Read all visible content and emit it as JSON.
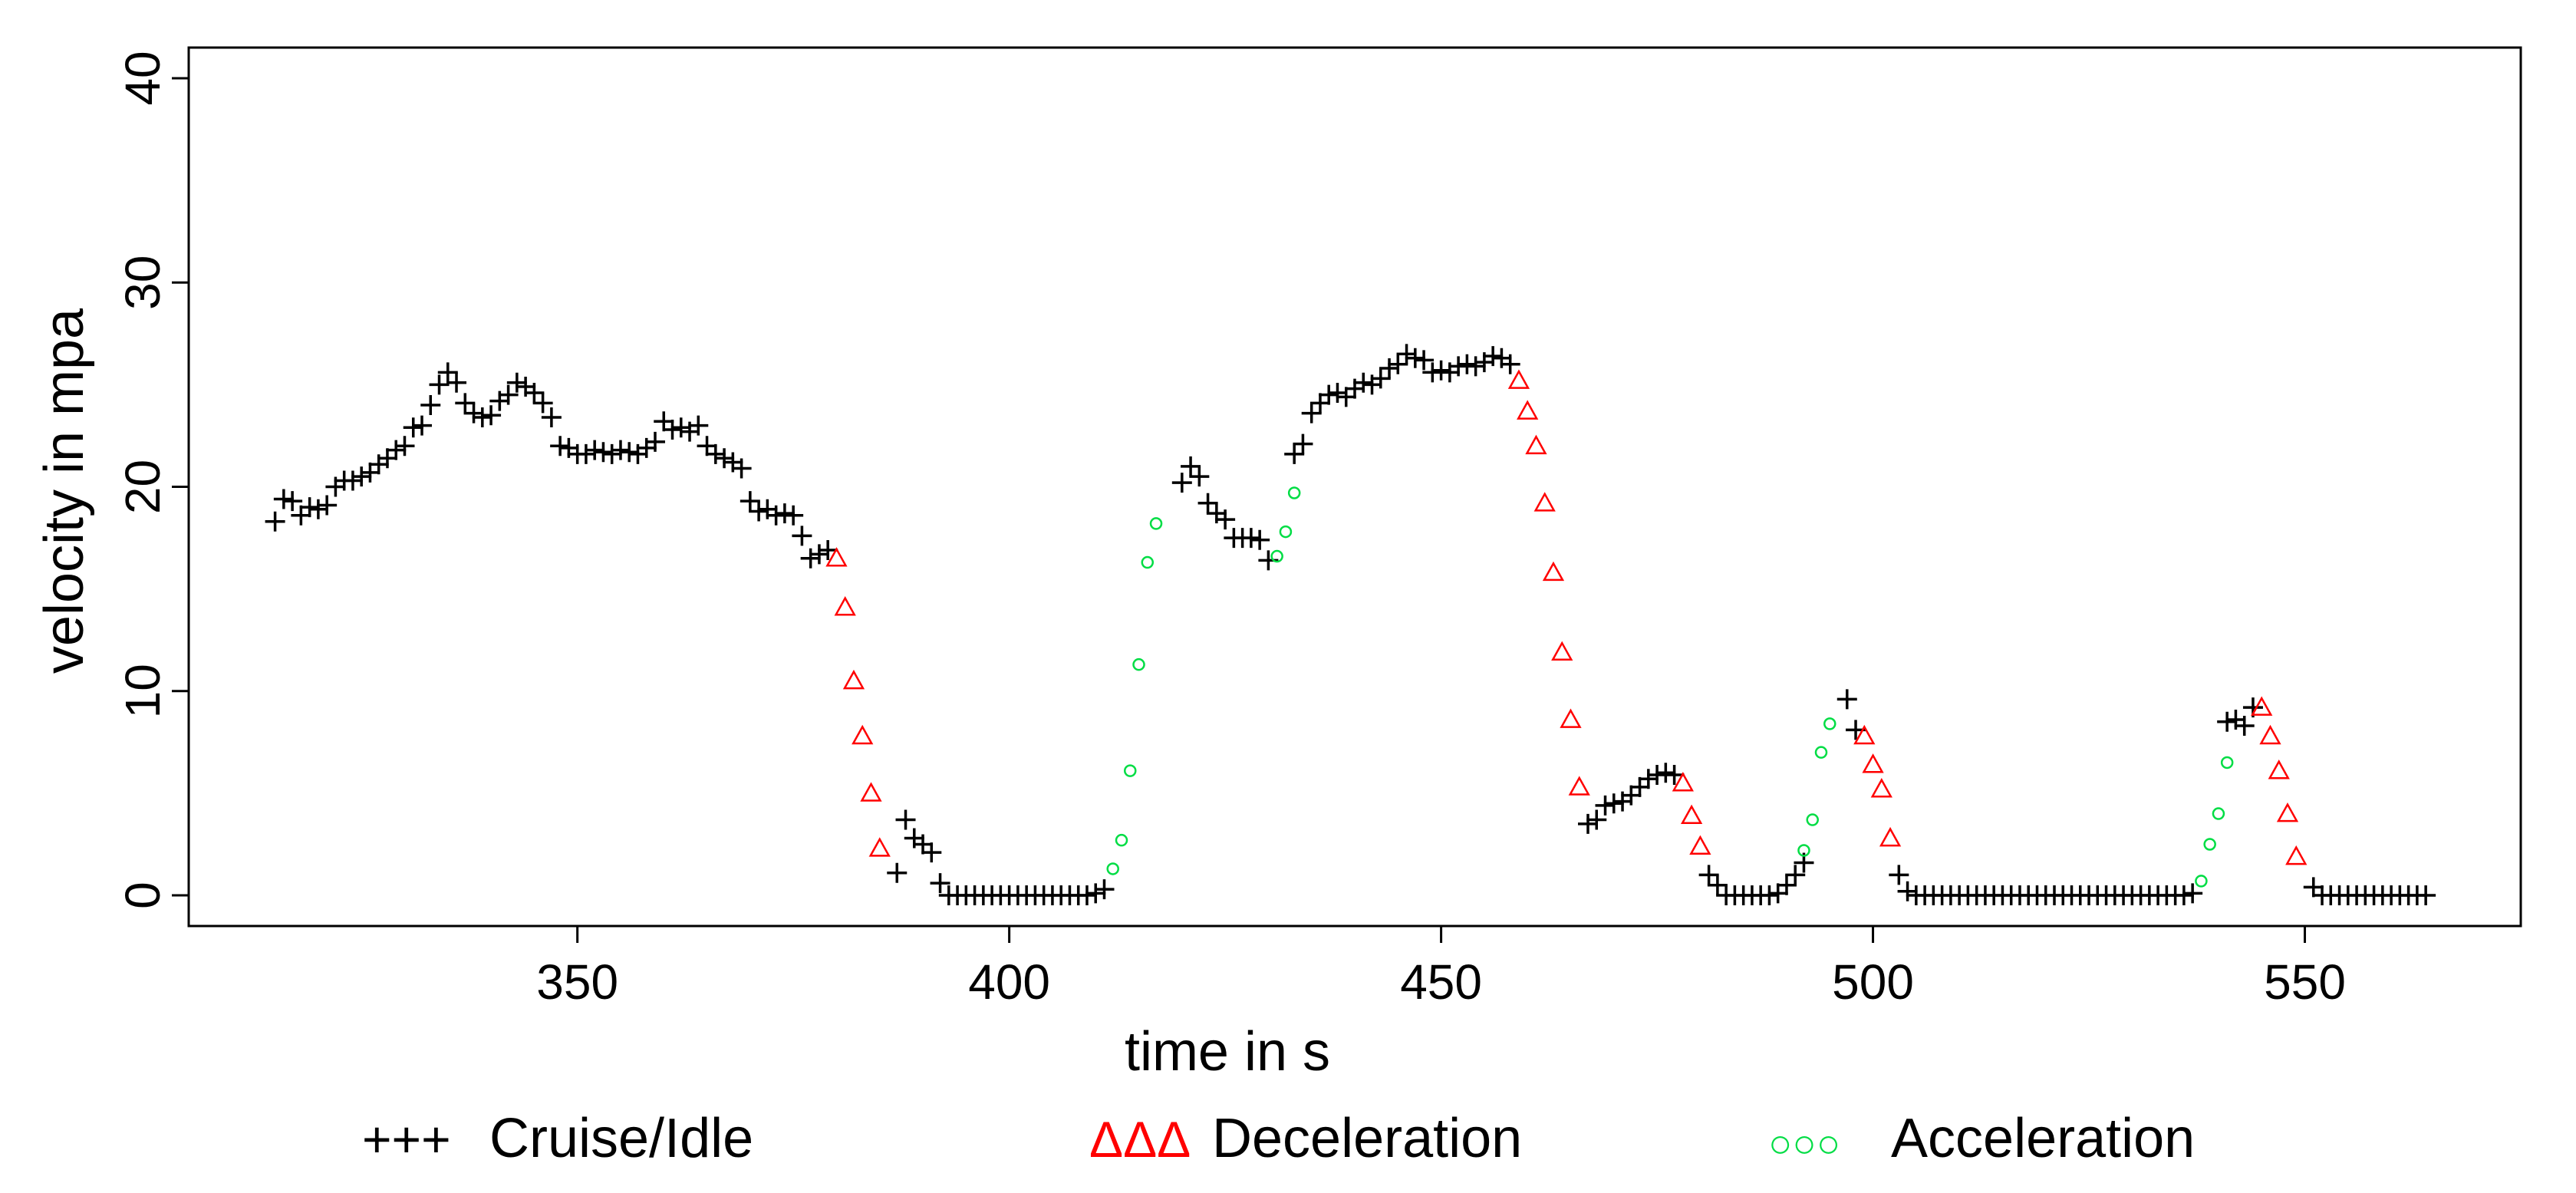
{
  "chart_data": {
    "type": "scatter",
    "xlabel": "time in s",
    "ylabel": "velocity in mpa",
    "xlim": [
      305,
      575
    ],
    "ylim": [
      -1.5,
      41.5
    ],
    "xticks": [
      "350",
      "400",
      "450",
      "500",
      "550"
    ],
    "yticks": [
      "0",
      "10",
      "20",
      "30",
      "40"
    ],
    "xtick_values": [
      350,
      400,
      450,
      500,
      550
    ],
    "ytick_values": [
      0,
      10,
      20,
      30,
      40
    ],
    "grid": false,
    "legend_position": "bottom",
    "colors": {
      "cruise": "#000000",
      "deceleration": "#ff0000",
      "acceleration": "#00dd44"
    },
    "series": [
      {
        "name": "Cruise/Idle",
        "legend_symbol": "+++",
        "marker": "plus",
        "points": [
          [
            315,
            18.3
          ],
          [
            316,
            19.4
          ],
          [
            317,
            19.3
          ],
          [
            318,
            18.6
          ],
          [
            319,
            19.0
          ],
          [
            320,
            18.9
          ],
          [
            321,
            19.1
          ],
          [
            322,
            20.0
          ],
          [
            323,
            20.3
          ],
          [
            324,
            20.3
          ],
          [
            325,
            20.5
          ],
          [
            326,
            20.7
          ],
          [
            327,
            21.1
          ],
          [
            328,
            21.4
          ],
          [
            329,
            21.8
          ],
          [
            330,
            22.0
          ],
          [
            331,
            22.9
          ],
          [
            332,
            23.0
          ],
          [
            333,
            24.0
          ],
          [
            334,
            25.0
          ],
          [
            335,
            25.6
          ],
          [
            336,
            25.1
          ],
          [
            337,
            24.1
          ],
          [
            338,
            23.6
          ],
          [
            339,
            23.4
          ],
          [
            340,
            23.5
          ],
          [
            341,
            24.2
          ],
          [
            342,
            24.5
          ],
          [
            343,
            25.1
          ],
          [
            344,
            24.9
          ],
          [
            345,
            24.6
          ],
          [
            346,
            24.1
          ],
          [
            347,
            23.4
          ],
          [
            348,
            22.0
          ],
          [
            349,
            21.9
          ],
          [
            350,
            21.6
          ],
          [
            351,
            21.6
          ],
          [
            352,
            21.8
          ],
          [
            353,
            21.7
          ],
          [
            354,
            21.6
          ],
          [
            355,
            21.8
          ],
          [
            356,
            21.7
          ],
          [
            357,
            21.6
          ],
          [
            358,
            21.9
          ],
          [
            359,
            22.2
          ],
          [
            360,
            23.2
          ],
          [
            361,
            22.8
          ],
          [
            362,
            22.9
          ],
          [
            363,
            22.7
          ],
          [
            364,
            23.0
          ],
          [
            365,
            22.0
          ],
          [
            366,
            21.6
          ],
          [
            367,
            21.4
          ],
          [
            368,
            21.2
          ],
          [
            369,
            20.9
          ],
          [
            370,
            19.3
          ],
          [
            371,
            18.8
          ],
          [
            372,
            18.9
          ],
          [
            373,
            18.6
          ],
          [
            374,
            18.7
          ],
          [
            375,
            18.6
          ],
          [
            376,
            17.6
          ],
          [
            377,
            16.5
          ],
          [
            378,
            16.7
          ],
          [
            379,
            16.9
          ],
          [
            387,
            1.1
          ],
          [
            388,
            3.7
          ],
          [
            389,
            2.8
          ],
          [
            390,
            2.5
          ],
          [
            391,
            2.1
          ],
          [
            392,
            0.6
          ],
          [
            393,
            0
          ],
          [
            394,
            0
          ],
          [
            395,
            0
          ],
          [
            396,
            0
          ],
          [
            397,
            0
          ],
          [
            398,
            0
          ],
          [
            399,
            0
          ],
          [
            400,
            0
          ],
          [
            401,
            0
          ],
          [
            402,
            0
          ],
          [
            403,
            0
          ],
          [
            404,
            0
          ],
          [
            405,
            0
          ],
          [
            406,
            0
          ],
          [
            407,
            0
          ],
          [
            408,
            0
          ],
          [
            409,
            0
          ],
          [
            410,
            0.1
          ],
          [
            411,
            0.3
          ],
          [
            420,
            20.2
          ],
          [
            421,
            21.0
          ],
          [
            422,
            20.5
          ],
          [
            423,
            19.2
          ],
          [
            424,
            18.7
          ],
          [
            425,
            18.4
          ],
          [
            426,
            17.5
          ],
          [
            427,
            17.5
          ],
          [
            428,
            17.5
          ],
          [
            429,
            17.4
          ],
          [
            430,
            16.4
          ],
          [
            433,
            21.6
          ],
          [
            434,
            22.1
          ],
          [
            435,
            23.6
          ],
          [
            436,
            24.1
          ],
          [
            437,
            24.5
          ],
          [
            438,
            24.6
          ],
          [
            439,
            24.4
          ],
          [
            440,
            24.8
          ],
          [
            441,
            25.1
          ],
          [
            442,
            25.0
          ],
          [
            443,
            25.3
          ],
          [
            444,
            25.8
          ],
          [
            445,
            26.0
          ],
          [
            446,
            26.5
          ],
          [
            447,
            26.3
          ],
          [
            448,
            26.2
          ],
          [
            449,
            25.6
          ],
          [
            450,
            25.7
          ],
          [
            451,
            25.6
          ],
          [
            452,
            25.9
          ],
          [
            453,
            26.0
          ],
          [
            454,
            25.9
          ],
          [
            455,
            26.1
          ],
          [
            456,
            26.4
          ],
          [
            457,
            26.3
          ],
          [
            458,
            26.0
          ],
          [
            467,
            3.5
          ],
          [
            468,
            3.7
          ],
          [
            469,
            4.4
          ],
          [
            470,
            4.5
          ],
          [
            471,
            4.6
          ],
          [
            472,
            4.9
          ],
          [
            473,
            5.3
          ],
          [
            474,
            5.7
          ],
          [
            475,
            5.9
          ],
          [
            476,
            6.0
          ],
          [
            477,
            5.9
          ],
          [
            481,
            1.0
          ],
          [
            482,
            0.5
          ],
          [
            483,
            0.0
          ],
          [
            484,
            0
          ],
          [
            485,
            0
          ],
          [
            486,
            0
          ],
          [
            487,
            0
          ],
          [
            488,
            0
          ],
          [
            489,
            0.1
          ],
          [
            490,
            0.5
          ],
          [
            491,
            1.0
          ],
          [
            492,
            1.6
          ],
          [
            497,
            9.6
          ],
          [
            498,
            8.1
          ],
          [
            503,
            1.0
          ],
          [
            504,
            0.2
          ],
          [
            505,
            0
          ],
          [
            506,
            0
          ],
          [
            507,
            0
          ],
          [
            508,
            0
          ],
          [
            509,
            0
          ],
          [
            510,
            0
          ],
          [
            511,
            0
          ],
          [
            512,
            0
          ],
          [
            513,
            0
          ],
          [
            514,
            0
          ],
          [
            515,
            0
          ],
          [
            516,
            0
          ],
          [
            517,
            0
          ],
          [
            518,
            0
          ],
          [
            519,
            0
          ],
          [
            520,
            0
          ],
          [
            521,
            0
          ],
          [
            522,
            0
          ],
          [
            523,
            0
          ],
          [
            524,
            0
          ],
          [
            525,
            0
          ],
          [
            526,
            0
          ],
          [
            527,
            0
          ],
          [
            528,
            0
          ],
          [
            529,
            0
          ],
          [
            530,
            0
          ],
          [
            531,
            0
          ],
          [
            532,
            0
          ],
          [
            533,
            0
          ],
          [
            534,
            0
          ],
          [
            535,
            0
          ],
          [
            536,
            0
          ],
          [
            537,
            0.1
          ],
          [
            541,
            8.5
          ],
          [
            542,
            8.6
          ],
          [
            543,
            8.3
          ],
          [
            544,
            9.2
          ],
          [
            551,
            0.4
          ],
          [
            552,
            0
          ],
          [
            553,
            0
          ],
          [
            554,
            0
          ],
          [
            555,
            0
          ],
          [
            556,
            0
          ],
          [
            557,
            0
          ],
          [
            558,
            0
          ],
          [
            559,
            0
          ],
          [
            560,
            0
          ],
          [
            561,
            0
          ],
          [
            562,
            0
          ],
          [
            563,
            0
          ],
          [
            564,
            0
          ]
        ]
      },
      {
        "name": "Deceleration",
        "legend_symbol": "ΔΔΔ",
        "marker": "triangle",
        "points": [
          [
            380,
            16.5
          ],
          [
            381,
            14.1
          ],
          [
            382,
            10.5
          ],
          [
            383,
            7.8
          ],
          [
            384,
            5.0
          ],
          [
            385,
            2.3
          ],
          [
            459,
            25.2
          ],
          [
            460,
            23.7
          ],
          [
            461,
            22.0
          ],
          [
            462,
            19.2
          ],
          [
            463,
            15.8
          ],
          [
            464,
            11.9
          ],
          [
            465,
            8.6
          ],
          [
            466,
            5.3
          ],
          [
            478,
            5.5
          ],
          [
            479,
            3.9
          ],
          [
            480,
            2.4
          ],
          [
            499,
            7.8
          ],
          [
            500,
            6.4
          ],
          [
            501,
            5.2
          ],
          [
            502,
            2.8
          ],
          [
            545,
            9.2
          ],
          [
            546,
            7.8
          ],
          [
            547,
            6.1
          ],
          [
            548,
            4.0
          ],
          [
            549,
            1.9
          ]
        ]
      },
      {
        "name": "Acceleration",
        "legend_symbol": "○○○",
        "marker": "circle",
        "points": [
          [
            412,
            1.3
          ],
          [
            413,
            2.7
          ],
          [
            414,
            6.1
          ],
          [
            415,
            11.3
          ],
          [
            416,
            16.3
          ],
          [
            417,
            18.2
          ],
          [
            431,
            16.6
          ],
          [
            432,
            17.8
          ],
          [
            433,
            19.7
          ],
          [
            492,
            2.2
          ],
          [
            493,
            3.7
          ],
          [
            494,
            7.0
          ],
          [
            495,
            8.4
          ],
          [
            538,
            0.7
          ],
          [
            539,
            2.5
          ],
          [
            540,
            4.0
          ],
          [
            541,
            6.5
          ]
        ]
      }
    ]
  }
}
